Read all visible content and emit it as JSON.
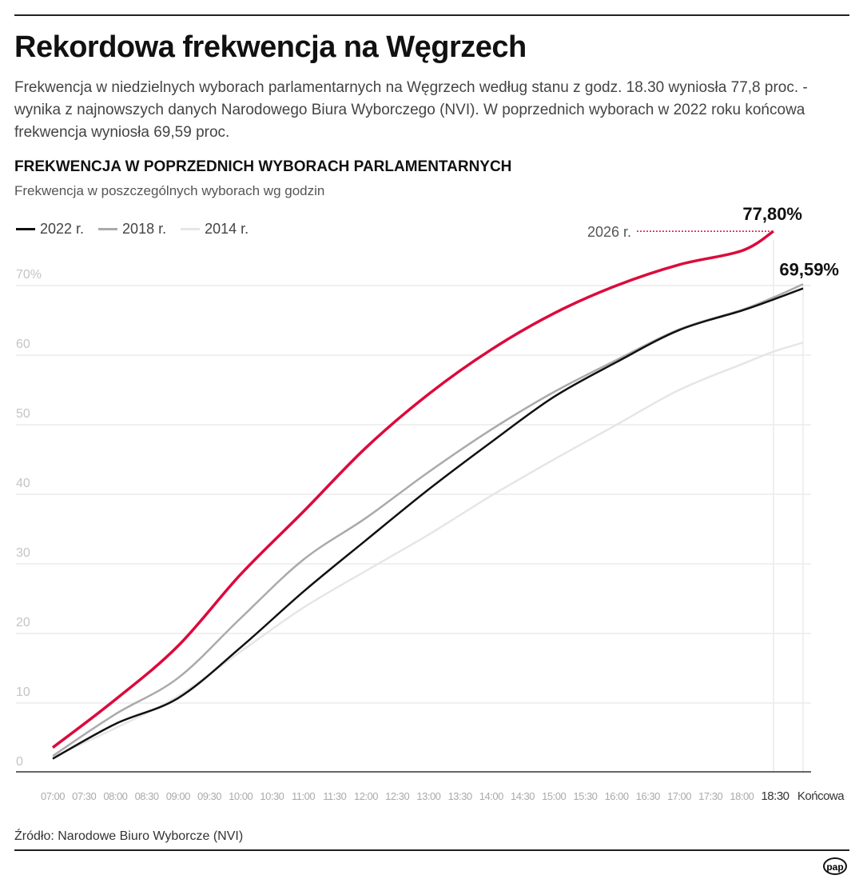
{
  "title": "Rekordowa frekwencja na Węgrzech",
  "lead": "Frekwencja w niedzielnych wyborach parlamentarnych na Węgrzech według stanu z godz. 18.30 wyniosła 77,8 proc. - wynika z najnowszych danych Narodowego Biura Wyborczego (NVI). W poprzednich wyborach w 2022 roku końcowa frekwencja wyniosła 69,59 proc.",
  "source": "Źródło: Narodowe Biuro Wyborcze (NVI)",
  "logo": "pap",
  "chart_data": {
    "type": "line",
    "title": "FREKWENCJA W POPRZEDNICH WYBORACH PARLAMENTARNYCH",
    "subtitle": "Frekwencja w poszczególnych wyborach wg godzin",
    "x": [
      "07:00",
      "07:30",
      "08:00",
      "08:30",
      "09:00",
      "09:30",
      "10:00",
      "10:30",
      "11:00",
      "11:30",
      "12:00",
      "12:30",
      "13:00",
      "13:30",
      "14:00",
      "14:30",
      "15:00",
      "15:30",
      "16:00",
      "16:30",
      "17:00",
      "17:30",
      "18:00",
      "18:30",
      "Końcowa"
    ],
    "ylim": [
      0,
      70
    ],
    "yticks": [
      "0",
      "10",
      "20",
      "30",
      "40",
      "50",
      "60",
      "70%"
    ],
    "grid": true,
    "legend": "top-left",
    "series": [
      {
        "name": "2014 r.",
        "color": "#e6e6e6",
        "points": {
          "07:00": 2.2,
          "08:00": 6.4,
          "09:00": 11,
          "10:00": 17.4,
          "11:00": 23.7,
          "12:00": 29,
          "13:00": 34.2,
          "14:00": 39.8,
          "15:00": 45,
          "16:00": 50,
          "17:00": 55,
          "18:00": 58.7,
          "18:30": 60.5,
          "Końcowa": 61.8
        }
      },
      {
        "name": "2018 r.",
        "color": "#aaaaaa",
        "points": {
          "07:00": 2.4,
          "08:00": 8.4,
          "09:00": 13.6,
          "10:00": 22.2,
          "11:00": 30.6,
          "12:00": 36.6,
          "13:00": 43.2,
          "14:00": 49.3,
          "15:00": 54.7,
          "16:00": 59.3,
          "17:00": 63.7,
          "18:00": 66.5,
          "18:30": 68.3,
          "Końcowa": 70.2
        }
      },
      {
        "name": "2022 r.",
        "color": "#111111",
        "points": {
          "07:00": 2,
          "08:00": 7,
          "09:00": 10.7,
          "10:00": 18,
          "11:00": 26,
          "12:00": 33.4,
          "13:00": 40.7,
          "14:00": 47.5,
          "15:00": 54,
          "16:00": 59,
          "17:00": 63.6,
          "18:00": 66.4,
          "18:30": 68,
          "Końcowa": 69.59
        }
      },
      {
        "name": "2026 r.",
        "color": "#dc0a3c",
        "points": {
          "07:00": 3.6,
          "08:00": 10.5,
          "09:00": 18.2,
          "10:00": 28.5,
          "11:00": 37.5,
          "12:00": 46.7,
          "13:00": 54.4,
          "14:00": 60.8,
          "15:00": 66,
          "16:00": 70,
          "17:00": 73,
          "18:00": 75,
          "18:30": 77.8
        }
      }
    ],
    "annotations": [
      {
        "text": "77,80%",
        "series": "2026 r.",
        "x": "18:30"
      },
      {
        "text": "69,59%",
        "series": "2022 r.",
        "x": "Końcowa"
      }
    ]
  }
}
